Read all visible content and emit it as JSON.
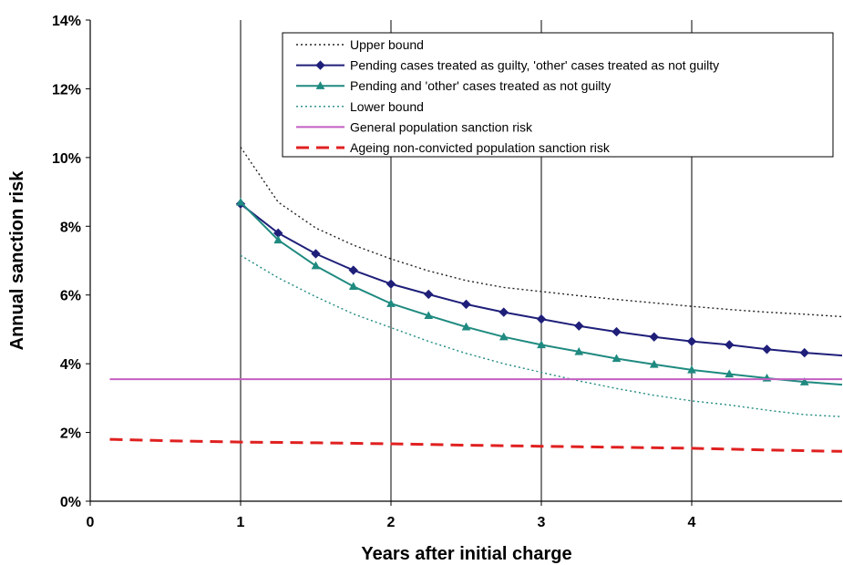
{
  "chart_data": {
    "type": "line",
    "xlabel": "Years after initial charge",
    "ylabel": "Annual sanction risk",
    "xlim": [
      0,
      5
    ],
    "ylim": [
      0,
      14
    ],
    "x_ticks": [
      0,
      1,
      2,
      3,
      4
    ],
    "x_tick_labels": [
      "0",
      "1",
      "2",
      "3",
      "4"
    ],
    "y_ticks": [
      0,
      2,
      4,
      6,
      8,
      10,
      12,
      14
    ],
    "y_tick_labels": [
      "0%",
      "2%",
      "4%",
      "6%",
      "8%",
      "10%",
      "12%",
      "14%"
    ],
    "grid": "vertical lines at x ticks",
    "legend_position": "top-right",
    "series": [
      {
        "name": "Upper bound",
        "color": "#222222",
        "style": "dotted",
        "marker": "none",
        "x": [
          1,
          1.25,
          1.5,
          1.75,
          2,
          2.25,
          2.5,
          2.75,
          3,
          3.25,
          3.5,
          3.75,
          4,
          4.25,
          4.5,
          4.75,
          5
        ],
        "values": [
          10.3,
          8.7,
          7.95,
          7.45,
          7.05,
          6.7,
          6.42,
          6.22,
          6.1,
          5.98,
          5.87,
          5.77,
          5.67,
          5.58,
          5.5,
          5.44,
          5.37
        ]
      },
      {
        "name": "Pending cases treated as guilty, 'other' cases treated as not guilty",
        "color": "#1f1f7a",
        "style": "solid",
        "marker": "diamond",
        "x": [
          1,
          1.25,
          1.5,
          1.75,
          2,
          2.25,
          2.5,
          2.75,
          3,
          3.25,
          3.5,
          3.75,
          4,
          4.25,
          4.5,
          4.75,
          5
        ],
        "values": [
          8.65,
          7.8,
          7.2,
          6.72,
          6.32,
          6.02,
          5.73,
          5.5,
          5.3,
          5.1,
          4.93,
          4.78,
          4.65,
          4.55,
          4.42,
          4.32,
          4.24
        ]
      },
      {
        "name": "Pending and 'other' cases treated as not guilty",
        "color": "#1f8a80",
        "style": "solid",
        "marker": "triangle",
        "x": [
          1,
          1.25,
          1.5,
          1.75,
          2,
          2.25,
          2.5,
          2.75,
          3,
          3.25,
          3.5,
          3.75,
          4,
          4.25,
          4.5,
          4.75,
          5
        ],
        "values": [
          8.7,
          7.6,
          6.85,
          6.25,
          5.75,
          5.4,
          5.07,
          4.78,
          4.55,
          4.35,
          4.15,
          3.98,
          3.82,
          3.7,
          3.58,
          3.47,
          3.39
        ]
      },
      {
        "name": "Lower bound",
        "color": "#1f8a80",
        "style": "dotted",
        "marker": "none",
        "x": [
          1,
          1.25,
          1.5,
          1.75,
          2,
          2.25,
          2.5,
          2.75,
          3,
          3.25,
          3.5,
          3.75,
          4,
          4.25,
          4.5,
          4.75,
          5
        ],
        "values": [
          7.15,
          6.5,
          5.95,
          5.45,
          5.05,
          4.65,
          4.3,
          4.0,
          3.75,
          3.5,
          3.28,
          3.08,
          2.92,
          2.8,
          2.65,
          2.52,
          2.46
        ]
      },
      {
        "name": "General population sanction risk",
        "color": "#c45ec2",
        "style": "solid",
        "marker": "none",
        "x": [
          0.13,
          5
        ],
        "values": [
          3.55,
          3.55
        ]
      },
      {
        "name": "Ageing non-convicted population sanction risk",
        "color": "#e02020",
        "style": "dashed",
        "marker": "none",
        "x": [
          0.13,
          0.5,
          1,
          1.5,
          2,
          2.5,
          3,
          3.5,
          4,
          4.5,
          5
        ],
        "values": [
          1.8,
          1.76,
          1.72,
          1.7,
          1.67,
          1.63,
          1.6,
          1.57,
          1.54,
          1.49,
          1.45
        ]
      }
    ]
  }
}
